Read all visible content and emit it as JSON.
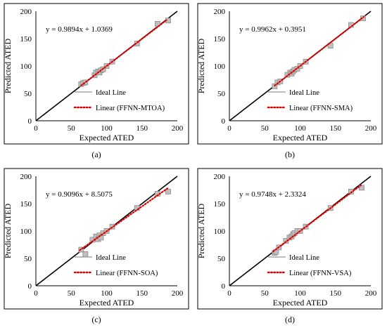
{
  "chart_data": [
    {
      "type": "scatter",
      "panel_label": "(a)",
      "label_letter": "a",
      "xlabel": "Expected ATED",
      "ylabel": "Predicted ATED",
      "xlim": [
        0,
        200
      ],
      "ylim": [
        0,
        200
      ],
      "xticks": [
        "0",
        "50",
        "100",
        "150",
        "200"
      ],
      "yticks": [
        "0",
        "50",
        "100",
        "150",
        "200"
      ],
      "equation": "y = 0.9894x + 1.0369",
      "fit": {
        "slope": 0.9894,
        "intercept": 1.0369,
        "x_range": [
          64,
          186
        ]
      },
      "legend": [
        "Ideal Line",
        "Linear (FFNN-MTOA)"
      ],
      "points": [
        [
          64,
          67
        ],
        [
          67,
          69
        ],
        [
          70,
          70
        ],
        [
          83,
          83
        ],
        [
          85,
          88
        ],
        [
          88,
          90
        ],
        [
          90,
          88
        ],
        [
          92,
          92
        ],
        [
          95,
          94
        ],
        [
          100,
          100
        ],
        [
          108,
          108
        ],
        [
          143,
          141
        ],
        [
          172,
          177
        ],
        [
          187,
          183
        ]
      ]
    },
    {
      "type": "scatter",
      "panel_label": "(b)",
      "label_letter": "b",
      "xlabel": "Expected ATED",
      "ylabel": "Predicted ATED",
      "xlim": [
        0,
        200
      ],
      "ylim": [
        0,
        200
      ],
      "xticks": [
        "0",
        "50",
        "100",
        "150",
        "200"
      ],
      "yticks": [
        "0",
        "50",
        "100",
        "150",
        "200"
      ],
      "equation": "y = 0.9962x + 0.3951",
      "fit": {
        "slope": 0.9962,
        "intercept": 0.3951,
        "x_range": [
          64,
          190
        ]
      },
      "legend": [
        "Ideal Line",
        "Linear (FFNN-SMA)"
      ],
      "points": [
        [
          64,
          63
        ],
        [
          68,
          70
        ],
        [
          72,
          72
        ],
        [
          82,
          84
        ],
        [
          86,
          88
        ],
        [
          88,
          86
        ],
        [
          90,
          90
        ],
        [
          92,
          93
        ],
        [
          96,
          95
        ],
        [
          100,
          100
        ],
        [
          108,
          108
        ],
        [
          143,
          137
        ],
        [
          172,
          175
        ],
        [
          189,
          187
        ]
      ]
    },
    {
      "type": "scatter",
      "panel_label": "(c)",
      "label_letter": "c",
      "xlabel": "Expected ATED",
      "ylabel": "Predicted ATED",
      "xlim": [
        0,
        200
      ],
      "ylim": [
        0,
        200
      ],
      "xticks": [
        "0",
        "50",
        "100",
        "150",
        "200"
      ],
      "yticks": [
        "0",
        "50",
        "100",
        "150",
        "200"
      ],
      "equation": "y = 0.9096x + 8.5075",
      "fit": {
        "slope": 0.9096,
        "intercept": 8.5075,
        "x_range": [
          62,
          186
        ]
      },
      "legend": [
        "Ideal Line",
        "Linear (FFNN-SOA)"
      ],
      "points": [
        [
          64,
          66
        ],
        [
          70,
          58
        ],
        [
          80,
          84
        ],
        [
          85,
          90
        ],
        [
          88,
          85
        ],
        [
          90,
          92
        ],
        [
          92,
          88
        ],
        [
          95,
          96
        ],
        [
          100,
          100
        ],
        [
          108,
          108
        ],
        [
          143,
          142
        ],
        [
          172,
          168
        ],
        [
          187,
          172
        ]
      ]
    },
    {
      "type": "scatter",
      "panel_label": "(d)",
      "label_letter": "d",
      "xlabel": "Expected ATED",
      "ylabel": "Predicted ATED",
      "xlim": [
        0,
        200
      ],
      "ylim": [
        0,
        200
      ],
      "xticks": [
        "0",
        "50",
        "100",
        "150",
        "200"
      ],
      "yticks": [
        "0",
        "50",
        "100",
        "150",
        "200"
      ],
      "equation": "y = 0.9748x + 2.3324",
      "fit": {
        "slope": 0.9748,
        "intercept": 2.3324,
        "x_range": [
          62,
          186
        ]
      },
      "legend": [
        "Ideal Line",
        "Linear (FFNN-VSA)"
      ],
      "points": [
        [
          64,
          60
        ],
        [
          66,
          62
        ],
        [
          70,
          70
        ],
        [
          80,
          82
        ],
        [
          85,
          88
        ],
        [
          88,
          90
        ],
        [
          90,
          94
        ],
        [
          92,
          96
        ],
        [
          96,
          100
        ],
        [
          100,
          100
        ],
        [
          108,
          108
        ],
        [
          143,
          142
        ],
        [
          172,
          172
        ],
        [
          187,
          179
        ]
      ]
    }
  ],
  "colors": {
    "ideal_line": "#000000",
    "fit_line": "#e00000",
    "legend_ideal_swatch": "#a6a6a6",
    "marker_fill": "#bfbfbf",
    "marker_stroke": "#8c8c8c",
    "frame": "#000000"
  }
}
